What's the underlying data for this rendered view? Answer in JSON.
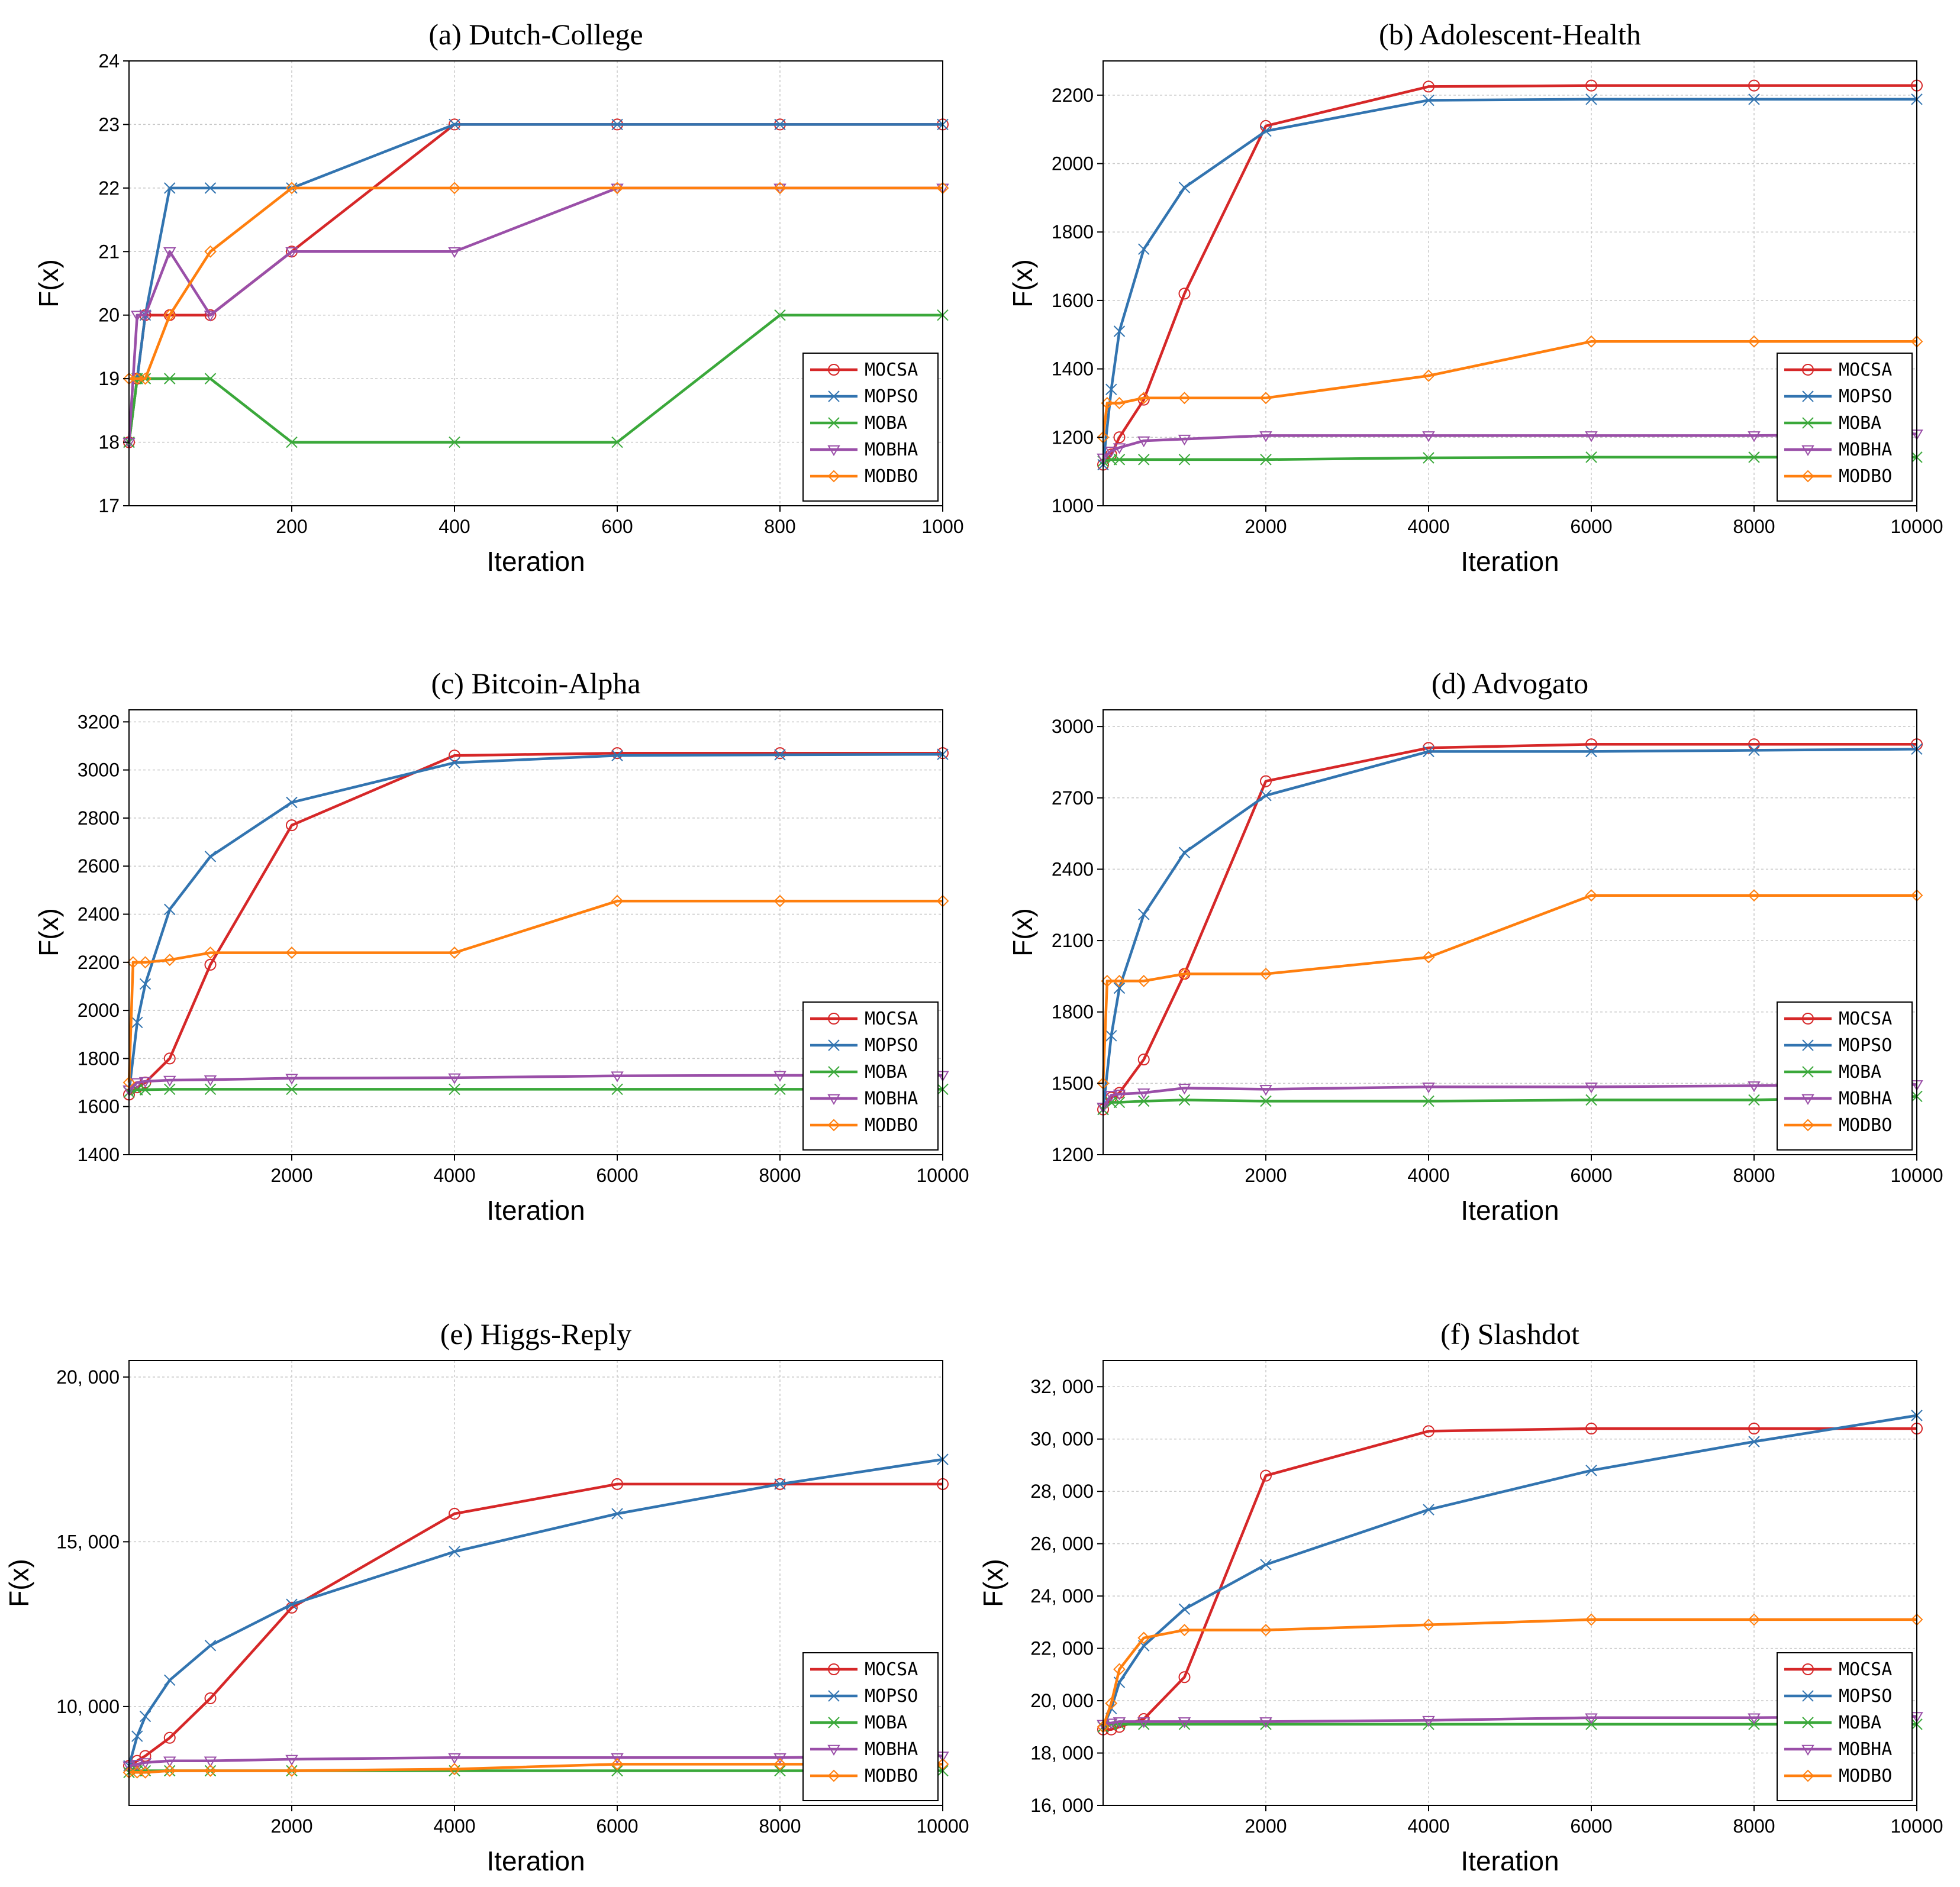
{
  "colors": {
    "MOCSA": "#d62728",
    "MOPSO": "#3274b0",
    "MOBA": "#3aa83a",
    "MOBHA": "#9a4fa8",
    "MODBO": "#ff7f0e"
  },
  "chart_data": [
    {
      "type": "line",
      "title": "(a) Dutch-College",
      "xlabel": "Iteration",
      "ylabel": "F(x)",
      "xlim": [
        0,
        1000
      ],
      "ylim": [
        17,
        24
      ],
      "xticks": [
        200,
        400,
        600,
        800,
        1000
      ],
      "xtick_labels": [
        "200",
        "400",
        "600",
        "800",
        "1000"
      ],
      "yticks": [
        17,
        18,
        19,
        20,
        21,
        22,
        23,
        24
      ],
      "ytick_labels": [
        "17",
        "18",
        "19",
        "20",
        "21",
        "22",
        "23",
        "24"
      ],
      "legend": "bottom-right",
      "series": [
        {
          "name": "MOCSA",
          "x": [
            0,
            10,
            20,
            50,
            100,
            200,
            400,
            600,
            800,
            1000
          ],
          "values": [
            18,
            19,
            20,
            20,
            20,
            21,
            23,
            23,
            23,
            23
          ]
        },
        {
          "name": "MOPSO",
          "x": [
            0,
            10,
            20,
            50,
            100,
            200,
            400,
            600,
            800,
            1000
          ],
          "values": [
            18,
            19,
            20,
            22,
            22,
            22,
            23,
            23,
            23,
            23
          ]
        },
        {
          "name": "MOBA",
          "x": [
            0,
            10,
            20,
            50,
            100,
            200,
            400,
            600,
            800,
            1000
          ],
          "values": [
            18,
            19,
            19,
            19,
            19,
            18,
            18,
            18,
            20,
            20
          ]
        },
        {
          "name": "MOBHA",
          "x": [
            0,
            10,
            20,
            50,
            100,
            200,
            400,
            600,
            800,
            1000
          ],
          "values": [
            18,
            20,
            20,
            21,
            20,
            21,
            21,
            22,
            22,
            22
          ]
        },
        {
          "name": "MODBO",
          "x": [
            0,
            10,
            20,
            50,
            100,
            200,
            400,
            600,
            800,
            1000
          ],
          "values": [
            19,
            19,
            19,
            20,
            21,
            22,
            22,
            22,
            22,
            22
          ]
        }
      ]
    },
    {
      "type": "line",
      "title": "(b) Adolescent-Health",
      "xlabel": "Iteration",
      "ylabel": "F(x)",
      "xlim": [
        0,
        10000
      ],
      "ylim": [
        1000,
        2300
      ],
      "xticks": [
        2000,
        4000,
        6000,
        8000,
        10000
      ],
      "xtick_labels": [
        "2000",
        "4000",
        "6000",
        "8000",
        "10000"
      ],
      "yticks": [
        1000,
        1200,
        1400,
        1600,
        1800,
        2000,
        2200
      ],
      "ytick_labels": [
        "1000",
        "1200",
        "1400",
        "1600",
        "1800",
        "2000",
        "2200"
      ],
      "legend": "bottom-right",
      "series": [
        {
          "name": "MOCSA",
          "x": [
            0,
            100,
            200,
            500,
            1000,
            2000,
            4000,
            6000,
            8000,
            10000
          ],
          "values": [
            1120,
            1150,
            1200,
            1310,
            1620,
            2110,
            2225,
            2228,
            2228,
            2228
          ]
        },
        {
          "name": "MOPSO",
          "x": [
            0,
            100,
            200,
            500,
            1000,
            2000,
            4000,
            6000,
            8000,
            10000
          ],
          "values": [
            1120,
            1340,
            1510,
            1750,
            1930,
            2095,
            2185,
            2188,
            2188,
            2188
          ]
        },
        {
          "name": "MOBA",
          "x": [
            0,
            100,
            200,
            500,
            1000,
            2000,
            4000,
            6000,
            8000,
            10000
          ],
          "values": [
            1130,
            1135,
            1135,
            1135,
            1135,
            1135,
            1140,
            1142,
            1142,
            1142
          ]
        },
        {
          "name": "MOBHA",
          "x": [
            0,
            100,
            200,
            500,
            1000,
            2000,
            4000,
            6000,
            8000,
            10000
          ],
          "values": [
            1140,
            1160,
            1170,
            1190,
            1195,
            1205,
            1205,
            1205,
            1205,
            1210
          ]
        },
        {
          "name": "MODBO",
          "x": [
            0,
            50,
            200,
            500,
            1000,
            2000,
            4000,
            6000,
            8000,
            10000
          ],
          "values": [
            1200,
            1300,
            1300,
            1315,
            1315,
            1315,
            1380,
            1480,
            1480,
            1480
          ]
        }
      ]
    },
    {
      "type": "line",
      "title": "(c) Bitcoin-Alpha",
      "xlabel": "Iteration",
      "ylabel": "F(x)",
      "xlim": [
        0,
        10000
      ],
      "ylim": [
        1400,
        3250
      ],
      "xticks": [
        2000,
        4000,
        6000,
        8000,
        10000
      ],
      "xtick_labels": [
        "2000",
        "4000",
        "6000",
        "8000",
        "10000"
      ],
      "yticks": [
        1400,
        1600,
        1800,
        2000,
        2200,
        2400,
        2600,
        2800,
        3000,
        3200
      ],
      "ytick_labels": [
        "1400",
        "1600",
        "1800",
        "2000",
        "2200",
        "2400",
        "2600",
        "2800",
        "3000",
        "3200"
      ],
      "legend": "bottom-right",
      "series": [
        {
          "name": "MOCSA",
          "x": [
            0,
            100,
            200,
            500,
            1000,
            2000,
            4000,
            6000,
            8000,
            10000
          ],
          "values": [
            1650,
            1680,
            1700,
            1800,
            2190,
            2770,
            3060,
            3070,
            3070,
            3070
          ]
        },
        {
          "name": "MOPSO",
          "x": [
            0,
            100,
            200,
            500,
            1000,
            2000,
            4000,
            6000,
            8000,
            10000
          ],
          "values": [
            1660,
            1950,
            2110,
            2420,
            2640,
            2865,
            3030,
            3060,
            3063,
            3065
          ]
        },
        {
          "name": "MOBA",
          "x": [
            0,
            100,
            200,
            500,
            1000,
            2000,
            4000,
            6000,
            8000,
            10000
          ],
          "values": [
            1660,
            1670,
            1670,
            1672,
            1672,
            1672,
            1672,
            1672,
            1672,
            1672
          ]
        },
        {
          "name": "MOBHA",
          "x": [
            0,
            100,
            200,
            500,
            1000,
            2000,
            4000,
            6000,
            8000,
            10000
          ],
          "values": [
            1670,
            1700,
            1705,
            1710,
            1712,
            1718,
            1720,
            1728,
            1730,
            1730
          ]
        },
        {
          "name": "MODBO",
          "x": [
            0,
            50,
            200,
            500,
            1000,
            2000,
            4000,
            6000,
            8000,
            10000
          ],
          "values": [
            1700,
            2200,
            2200,
            2210,
            2240,
            2240,
            2240,
            2455,
            2455,
            2455
          ]
        }
      ]
    },
    {
      "type": "line",
      "title": "(d) Advogato",
      "xlabel": "Iteration",
      "ylabel": "F(x)",
      "xlim": [
        0,
        10000
      ],
      "ylim": [
        1200,
        3070
      ],
      "xticks": [
        2000,
        4000,
        6000,
        8000,
        10000
      ],
      "xtick_labels": [
        "2000",
        "4000",
        "6000",
        "8000",
        "10000"
      ],
      "yticks": [
        1200,
        1500,
        1800,
        2100,
        2400,
        2700,
        3000
      ],
      "ytick_labels": [
        "1200",
        "1500",
        "1800",
        "2100",
        "2400",
        "2700",
        "3000"
      ],
      "legend": "bottom-right",
      "series": [
        {
          "name": "MOCSA",
          "x": [
            0,
            100,
            200,
            500,
            1000,
            2000,
            4000,
            6000,
            8000,
            10000
          ],
          "values": [
            1390,
            1440,
            1460,
            1600,
            1960,
            2770,
            2910,
            2925,
            2925,
            2925
          ]
        },
        {
          "name": "MOPSO",
          "x": [
            0,
            100,
            200,
            500,
            1000,
            2000,
            4000,
            6000,
            8000,
            10000
          ],
          "values": [
            1390,
            1700,
            1900,
            2210,
            2470,
            2710,
            2895,
            2895,
            2900,
            2905
          ]
        },
        {
          "name": "MOBA",
          "x": [
            0,
            100,
            200,
            500,
            1000,
            2000,
            4000,
            6000,
            8000,
            10000
          ],
          "values": [
            1390,
            1420,
            1420,
            1425,
            1430,
            1425,
            1425,
            1430,
            1430,
            1445
          ]
        },
        {
          "name": "MOBHA",
          "x": [
            0,
            100,
            200,
            500,
            1000,
            2000,
            4000,
            6000,
            8000,
            10000
          ],
          "values": [
            1400,
            1450,
            1455,
            1460,
            1480,
            1475,
            1485,
            1485,
            1490,
            1495
          ]
        },
        {
          "name": "MODBO",
          "x": [
            0,
            50,
            200,
            500,
            1000,
            2000,
            4000,
            6000,
            8000,
            10000
          ],
          "values": [
            1500,
            1930,
            1930,
            1930,
            1960,
            1960,
            2030,
            2290,
            2290,
            2290
          ]
        }
      ]
    },
    {
      "type": "line",
      "title": "(e) Higgs-Reply",
      "xlabel": "Iteration",
      "ylabel": "F(x)",
      "xlim": [
        0,
        10000
      ],
      "ylim": [
        7000,
        20500
      ],
      "xticks": [
        2000,
        4000,
        6000,
        8000,
        10000
      ],
      "xtick_labels": [
        "2000",
        "4000",
        "6000",
        "8000",
        "10000"
      ],
      "yticks": [
        10000,
        15000,
        20000
      ],
      "ytick_labels": [
        "10, 000",
        "15, 000",
        "20, 000"
      ],
      "legend": "bottom-right",
      "series": [
        {
          "name": "MOCSA",
          "x": [
            0,
            100,
            200,
            500,
            1000,
            2000,
            4000,
            6000,
            8000,
            10000
          ],
          "values": [
            8200,
            8350,
            8500,
            9050,
            10250,
            13000,
            15850,
            16750,
            16750,
            16750
          ]
        },
        {
          "name": "MOPSO",
          "x": [
            0,
            100,
            200,
            500,
            1000,
            2000,
            4000,
            6000,
            8000,
            10000
          ],
          "values": [
            8200,
            9100,
            9700,
            10800,
            11850,
            13100,
            14700,
            15850,
            16750,
            17500
          ]
        },
        {
          "name": "MOBA",
          "x": [
            0,
            100,
            200,
            500,
            1000,
            2000,
            4000,
            6000,
            8000,
            10000
          ],
          "values": [
            8000,
            8050,
            8050,
            8050,
            8050,
            8050,
            8050,
            8050,
            8050,
            8050
          ]
        },
        {
          "name": "MOBHA",
          "x": [
            0,
            100,
            200,
            500,
            1000,
            2000,
            4000,
            6000,
            8000,
            10000
          ],
          "values": [
            8200,
            8250,
            8300,
            8350,
            8350,
            8400,
            8450,
            8450,
            8450,
            8500
          ]
        },
        {
          "name": "MODBO",
          "x": [
            0,
            100,
            200,
            500,
            1000,
            2000,
            4000,
            6000,
            8000,
            10000
          ],
          "values": [
            8000,
            8000,
            8000,
            8050,
            8050,
            8050,
            8100,
            8250,
            8250,
            8250
          ]
        }
      ]
    },
    {
      "type": "line",
      "title": "(f) Slashdot",
      "xlabel": "Iteration",
      "ylabel": "F(x)",
      "xlim": [
        0,
        10000
      ],
      "ylim": [
        16000,
        33000
      ],
      "xticks": [
        2000,
        4000,
        6000,
        8000,
        10000
      ],
      "xtick_labels": [
        "2000",
        "4000",
        "6000",
        "8000",
        "10000"
      ],
      "yticks": [
        16000,
        18000,
        20000,
        22000,
        24000,
        26000,
        28000,
        30000,
        32000
      ],
      "ytick_labels": [
        "16, 000",
        "18, 000",
        "20, 000",
        "22, 000",
        "24, 000",
        "26, 000",
        "28, 000",
        "30, 000",
        "32, 000"
      ],
      "legend": "bottom-right",
      "series": [
        {
          "name": "MOCSA",
          "x": [
            0,
            100,
            200,
            500,
            1000,
            2000,
            4000,
            6000,
            8000,
            10000
          ],
          "values": [
            18900,
            18900,
            19000,
            19300,
            20900,
            28600,
            30300,
            30400,
            30400,
            30400
          ]
        },
        {
          "name": "MOPSO",
          "x": [
            0,
            100,
            200,
            500,
            1000,
            2000,
            4000,
            6000,
            8000,
            10000
          ],
          "values": [
            19000,
            19700,
            20700,
            22100,
            23500,
            25200,
            27300,
            28800,
            29900,
            30900
          ]
        },
        {
          "name": "MOBA",
          "x": [
            0,
            100,
            200,
            500,
            1000,
            2000,
            4000,
            6000,
            8000,
            10000
          ],
          "values": [
            19000,
            19100,
            19100,
            19100,
            19100,
            19100,
            19100,
            19100,
            19100,
            19100
          ]
        },
        {
          "name": "MOBHA",
          "x": [
            0,
            100,
            200,
            500,
            1000,
            2000,
            4000,
            6000,
            8000,
            10000
          ],
          "values": [
            19100,
            19150,
            19200,
            19200,
            19200,
            19200,
            19250,
            19350,
            19350,
            19400
          ]
        },
        {
          "name": "MODBO",
          "x": [
            0,
            100,
            200,
            500,
            1000,
            2000,
            4000,
            6000,
            8000,
            10000
          ],
          "values": [
            19000,
            19900,
            21200,
            22400,
            22700,
            22700,
            22900,
            23100,
            23100,
            23100
          ]
        }
      ]
    }
  ]
}
